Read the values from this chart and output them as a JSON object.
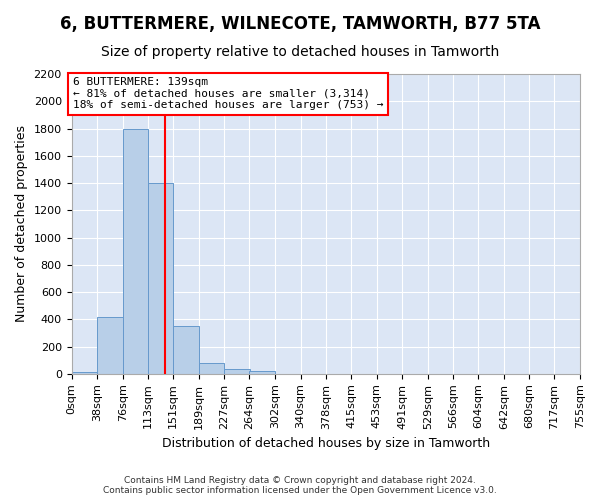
{
  "title": "6, BUTTERMERE, WILNECOTE, TAMWORTH, B77 5TA",
  "subtitle": "Size of property relative to detached houses in Tamworth",
  "xlabel": "Distribution of detached houses by size in Tamworth",
  "ylabel": "Number of detached properties",
  "bin_edges": [
    0,
    38,
    76,
    113,
    151,
    189,
    227,
    264,
    302,
    340,
    378,
    415,
    453,
    491,
    529,
    566,
    604,
    642,
    680,
    717,
    755
  ],
  "bin_labels": [
    "0sqm",
    "38sqm",
    "76sqm",
    "113sqm",
    "151sqm",
    "189sqm",
    "227sqm",
    "264sqm",
    "302sqm",
    "340sqm",
    "378sqm",
    "415sqm",
    "453sqm",
    "491sqm",
    "529sqm",
    "566sqm",
    "604sqm",
    "642sqm",
    "680sqm",
    "717sqm",
    "755sqm"
  ],
  "bar_heights": [
    15,
    420,
    1800,
    1400,
    350,
    80,
    35,
    20,
    0,
    0,
    0,
    0,
    0,
    0,
    0,
    0,
    0,
    0,
    0,
    0
  ],
  "bar_color": "#b8cfe8",
  "bar_edge_color": "#6699cc",
  "vline_x": 139,
  "vline_color": "red",
  "annotation_text": "6 BUTTERMERE: 139sqm\n← 81% of detached houses are smaller (3,314)\n18% of semi-detached houses are larger (753) →",
  "annotation_box_color": "white",
  "annotation_box_edge": "red",
  "ylim": [
    0,
    2200
  ],
  "background_color": "#dce6f5",
  "footer_text": "Contains HM Land Registry data © Crown copyright and database right 2024.\nContains public sector information licensed under the Open Government Licence v3.0.",
  "title_fontsize": 12,
  "subtitle_fontsize": 10,
  "ylabel_fontsize": 9,
  "xlabel_fontsize": 9,
  "tick_fontsize": 8,
  "footer_fontsize": 6.5
}
